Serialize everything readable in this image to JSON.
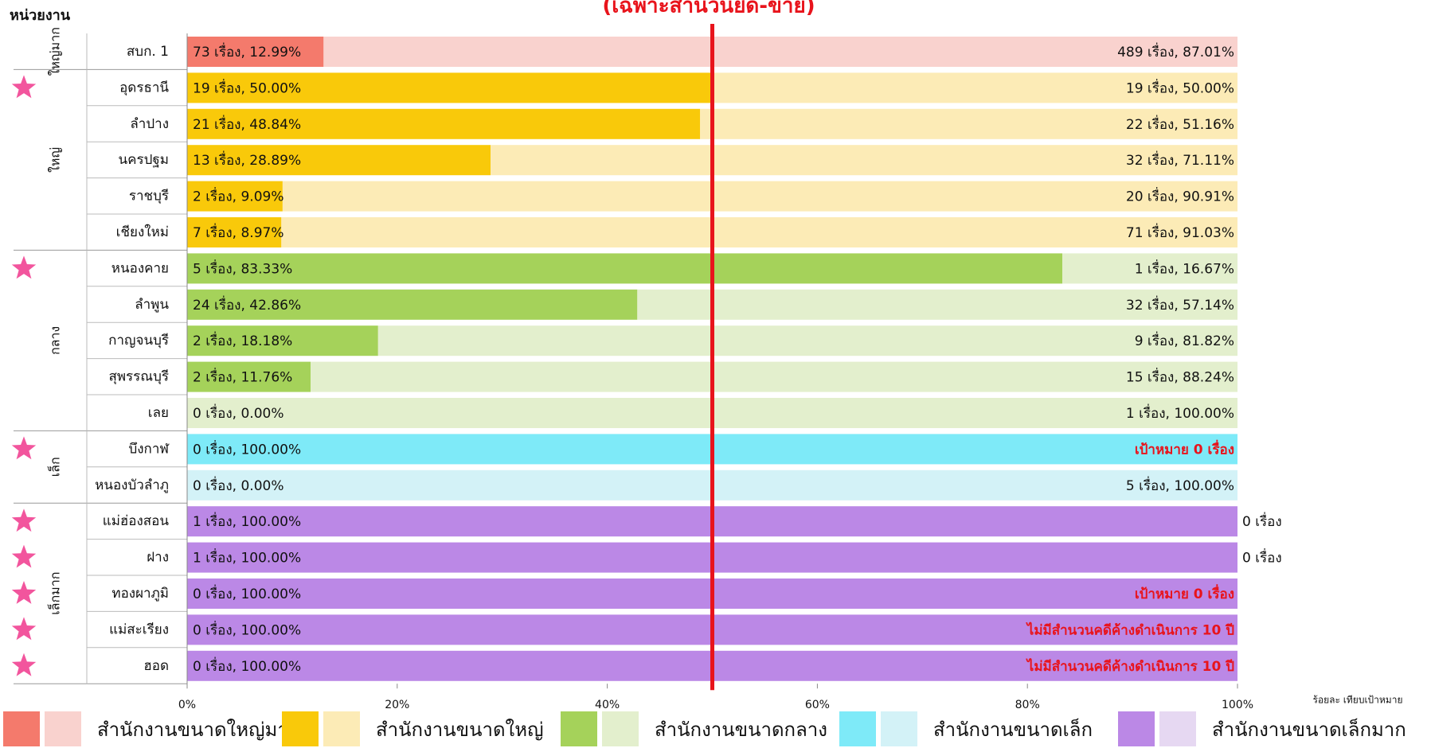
{
  "chart_data": {
    "type": "stacked-bar-100",
    "title": "(เฉพาะสำนวนยึด-ขาย)",
    "y_header": "หน่วยงาน",
    "xlabel": "ร้อยละ เทียบเป้าหมาย",
    "xlim": [
      0,
      100
    ],
    "xticks": [
      {
        "value": 0,
        "label": "0%"
      },
      {
        "value": 20,
        "label": "20%"
      },
      {
        "value": 40,
        "label": "40%"
      },
      {
        "value": 60,
        "label": "60%"
      },
      {
        "value": 80,
        "label": "80%"
      },
      {
        "value": 100,
        "label": "100%"
      }
    ],
    "reference_line": {
      "value": 50,
      "color": "#e8141c"
    },
    "groups": [
      {
        "label": "ใหญ่มาก",
        "legend": "สำนักงานขนาดใหญ่มาก",
        "color": "#f47a6c",
        "light": "#f9d2ce",
        "categories": [
          "สบก. 1"
        ],
        "starred": [
          false
        ],
        "done": [
          12.99
        ],
        "done_labels": [
          "73 เรื่อง, 12.99%"
        ],
        "remaining": [
          87.01
        ],
        "remaining_labels": [
          "489 เรื่อง, 87.01%"
        ]
      },
      {
        "label": "ใหญ่",
        "legend": "สำนักงานขนาดใหญ่",
        "color": "#f9c90a",
        "light": "#fcebb6",
        "categories": [
          "อุดรธานี",
          "ลำปาง",
          "นครปฐม",
          "ราชบุรี",
          "เชียงใหม่"
        ],
        "starred": [
          true,
          false,
          false,
          false,
          false
        ],
        "done": [
          50.0,
          48.84,
          28.89,
          9.09,
          8.97
        ],
        "done_labels": [
          "19 เรื่อง, 50.00%",
          "21 เรื่อง, 48.84%",
          "13 เรื่อง, 28.89%",
          "2 เรื่อง, 9.09%",
          "7 เรื่อง, 8.97%"
        ],
        "remaining": [
          50.0,
          51.16,
          71.11,
          90.91,
          91.03
        ],
        "remaining_labels": [
          "19 เรื่อง, 50.00%",
          "22 เรื่อง, 51.16%",
          "32 เรื่อง, 71.11%",
          "20 เรื่อง, 90.91%",
          "71 เรื่อง, 91.03%"
        ]
      },
      {
        "label": "กลาง",
        "legend": "สำนักงานขนาดกลาง",
        "color": "#a5d25a",
        "light": "#e3efcd",
        "categories": [
          "หนองคาย",
          "ลำพูน",
          "กาญจนบุรี",
          "สุพรรณบุรี",
          "เลย"
        ],
        "starred": [
          true,
          false,
          false,
          false,
          false
        ],
        "done": [
          83.33,
          42.86,
          18.18,
          11.76,
          0.0
        ],
        "done_labels": [
          "5 เรื่อง, 83.33%",
          "24 เรื่อง, 42.86%",
          "2 เรื่อง, 18.18%",
          "2 เรื่อง, 11.76%",
          "0 เรื่อง, 0.00%"
        ],
        "remaining": [
          16.67,
          57.14,
          81.82,
          88.24,
          100.0
        ],
        "remaining_labels": [
          "1 เรื่อง, 16.67%",
          "32 เรื่อง, 57.14%",
          "9 เรื่อง, 81.82%",
          "15 เรื่อง, 88.24%",
          "1 เรื่อง, 100.00%"
        ]
      },
      {
        "label": "เล็ก",
        "legend": "สำนักงานขนาดเล็ก",
        "color": "#7eeaf8",
        "light": "#d3f2f7",
        "categories": [
          "บึงกาฬ",
          "หนองบัวลำภู"
        ],
        "starred": [
          true,
          false
        ],
        "done": [
          100.0,
          0.0
        ],
        "done_labels": [
          "0 เรื่อง, 100.00%",
          "0 เรื่อง, 0.00%"
        ],
        "remaining": [
          null,
          100.0
        ],
        "remaining_labels": [
          "เป้าหมาย 0 เรื่อง",
          "5 เรื่อง, 100.00%"
        ]
      },
      {
        "label": "เล็กมาก",
        "legend": "สำนักงานขนาดเล็กมาก",
        "color": "#bb88e6",
        "light": "#e6d8f2",
        "categories": [
          "แม่ฮ่องสอน",
          "ฝาง",
          "ทองผาภูมิ",
          "แม่สะเรียง",
          "ฮอด"
        ],
        "starred": [
          true,
          true,
          true,
          true,
          true
        ],
        "done": [
          100.0,
          100.0,
          100.0,
          100.0,
          100.0
        ],
        "done_labels": [
          "1 เรื่อง, 100.00%",
          "1 เรื่อง, 100.00%",
          "0 เรื่อง, 100.00%",
          "0 เรื่อง, 100.00%",
          "0 เรื่อง, 100.00%"
        ],
        "remaining": [
          0,
          0,
          null,
          null,
          null
        ],
        "remaining_labels": [
          "0 เรื่อง",
          "0 เรื่อง",
          "เป้าหมาย 0 เรื่อง",
          "ไม่มีสำนวนคดีค้างดำเนินการ 10 ปี",
          "ไม่มีสำนวนคดีค้างดำเนินการ 10 ปี"
        ]
      }
    ]
  }
}
